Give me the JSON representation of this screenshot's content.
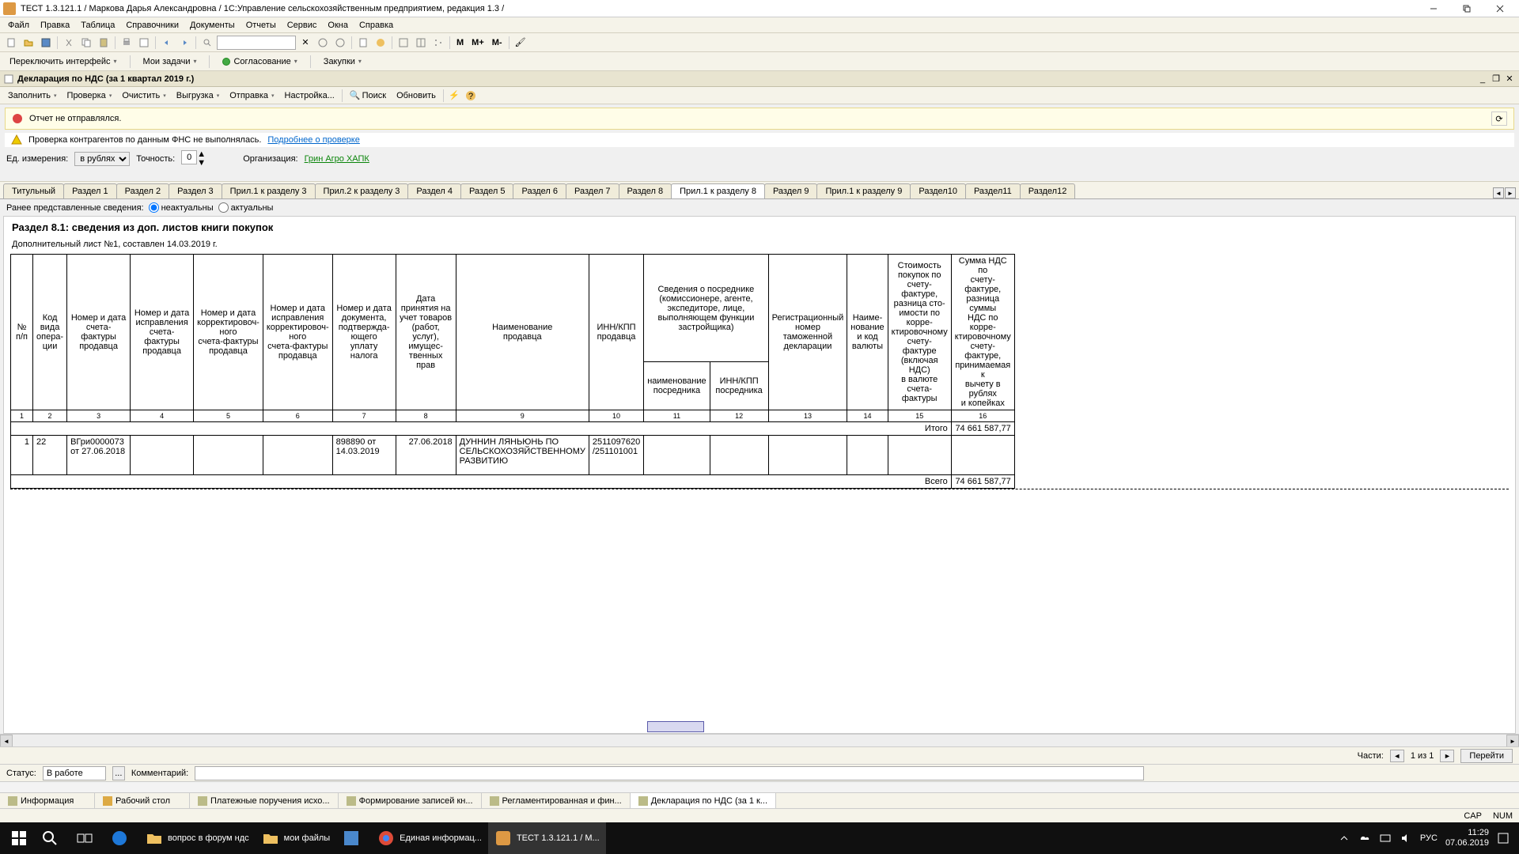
{
  "window": {
    "title": "ТЕСТ 1.3.121.1 / Маркова Дарья Александровна / 1С:Управление сельскохозяйственным предприятием, редакция 1.3 /"
  },
  "menubar": [
    "Файл",
    "Правка",
    "Таблица",
    "Справочники",
    "Документы",
    "Отчеты",
    "Сервис",
    "Окна",
    "Справка"
  ],
  "toolbar2": {
    "switch_ui": "Переключить интерфейс",
    "my_tasks": "Мои задачи",
    "approval": "Согласование",
    "purchases": "Закупки"
  },
  "doc": {
    "title": "Декларация по НДС (за 1 квартал 2019 г.)",
    "toolbar": {
      "fill": "Заполнить",
      "check": "Проверка",
      "clear": "Очистить",
      "upload": "Выгрузка",
      "send": "Отправка",
      "settings": "Настройка...",
      "search": "Поиск",
      "refresh": "Обновить"
    }
  },
  "notice1": "Отчет не отправлялся.",
  "notice2": {
    "text": "Проверка контрагентов по данным ФНС не выполнялась.",
    "link": "Подробнее о проверке"
  },
  "params": {
    "unit_label": "Ед. измерения:",
    "unit_value": "в рублях",
    "precision_label": "Точность:",
    "precision_value": "0",
    "org_label": "Организация:",
    "org_value": "Грин Агро ХАПК"
  },
  "tabs": [
    "Титульный",
    "Раздел 1",
    "Раздел 2",
    "Раздел 3",
    "Прил.1 к разделу 3",
    "Прил.2 к разделу 3",
    "Раздел 4",
    "Раздел 5",
    "Раздел 6",
    "Раздел 7",
    "Раздел 8",
    "Прил.1 к разделу 8",
    "Раздел 9",
    "Прил.1 к разделу 9",
    "Раздел10",
    "Раздел11",
    "Раздел12"
  ],
  "active_tab": 11,
  "radio": {
    "label": "Ранее представленные сведения:",
    "opt1": "неактуальны",
    "opt2": "актуальны"
  },
  "section": {
    "title": "Раздел 8.1: сведения из доп. листов книги покупок",
    "subtitle": "Дополнительный лист №1, составлен 14.03.2019 г."
  },
  "headers": {
    "c1": "№\nп/п",
    "c2": "Код\nвида\nопера-\nции",
    "c3": "Номер и дата\nсчета-фактуры\nпродавца",
    "c4": "Номер и дата\nисправления\nсчета-фактуры\nпродавца",
    "c5": "Номер и дата\nкорректировоч-\nного\nсчета-фактуры\nпродавца",
    "c6": "Номер и дата\nисправления\nкорректировоч-\nного\nсчета-фактуры\nпродавца",
    "c7": "Номер и дата\nдокумента,\nподтвержда-\nющего\nуплату налога",
    "c8": "Дата\nпринятия на\nучет товаров\n(работ, услуг),\nимущес-\nтвенных прав",
    "c9": "Наименование\nпродавца",
    "c10": "ИНН/КПП\nпродавца",
    "c11_top": "Сведения о посреднике\n(комиссионере, агенте,\nэкспедиторе, лице,\nвыполняющем функции\nзастройщика)",
    "c11": "наименование\nпосредника",
    "c12": "ИНН/КПП\nпосредника",
    "c13": "Регистрационный\nномер\nтаможенной\nдекларации",
    "c14": "Наиме-\nнование\nи код\nвалюты",
    "c15": "Стоимость\nпокупок по\nсчету-фактуре,\nразница сто-\nимости по корре-\nктировочному\nсчету-фактуре\n(включая НДС)\nв валюте\nсчета-фактуры",
    "c16": "Сумма НДС по\nсчету-фактуре,\nразница суммы\nНДС по корре-\nктировочному\nсчету-фактуре,\nпринимаемая к\nвычету в рублях\nи копейках"
  },
  "colnums": [
    "1",
    "2",
    "3",
    "4",
    "5",
    "6",
    "7",
    "8",
    "9",
    "10",
    "11",
    "12",
    "13",
    "14",
    "15",
    "16"
  ],
  "totals": {
    "itogo_label": "Итого",
    "itogo_value": "74 661 587,77",
    "vsego_label": "Всего",
    "vsego_value": "74 661 587,77"
  },
  "row": {
    "n": "1",
    "code": "22",
    "c3": "ВГри0000073 от 27.06.2018",
    "c7": "898890 от 14.03.2019",
    "c8": "27.06.2018",
    "c9": "ДУННИН ЛЯНЬЮНЬ ПО СЕЛЬСКОХОЗЯЙСТВЕННОМУ РАЗВИТИЮ",
    "c10": "2511097620 /251101001"
  },
  "parts": {
    "label": "Части:",
    "value": "1 из 1",
    "goto": "Перейти"
  },
  "status": {
    "label": "Статус:",
    "value": "В работе",
    "comment_label": "Комментарий:"
  },
  "bottom_tabs": [
    "Информация",
    "Рабочий стол",
    "Платежные поручения исхо...",
    "Формирование записей кн...",
    "Регламентированная и фин...",
    "Декларация по НДС (за 1 к..."
  ],
  "statusbar": {
    "cap": "CAP",
    "num": "NUM"
  },
  "taskbar": {
    "items": [
      {
        "label": "вопрос в форум ндс",
        "icon": "folder"
      },
      {
        "label": "мои файлы",
        "icon": "folder"
      },
      {
        "label": "",
        "icon": "app1"
      },
      {
        "label": "Единая информац...",
        "icon": "chrome"
      },
      {
        "label": "ТЕСТ 1.3.121.1 / М...",
        "icon": "1c",
        "active": true
      }
    ],
    "time": "11:29",
    "date": "07.06.2019",
    "lang": "РУС"
  }
}
